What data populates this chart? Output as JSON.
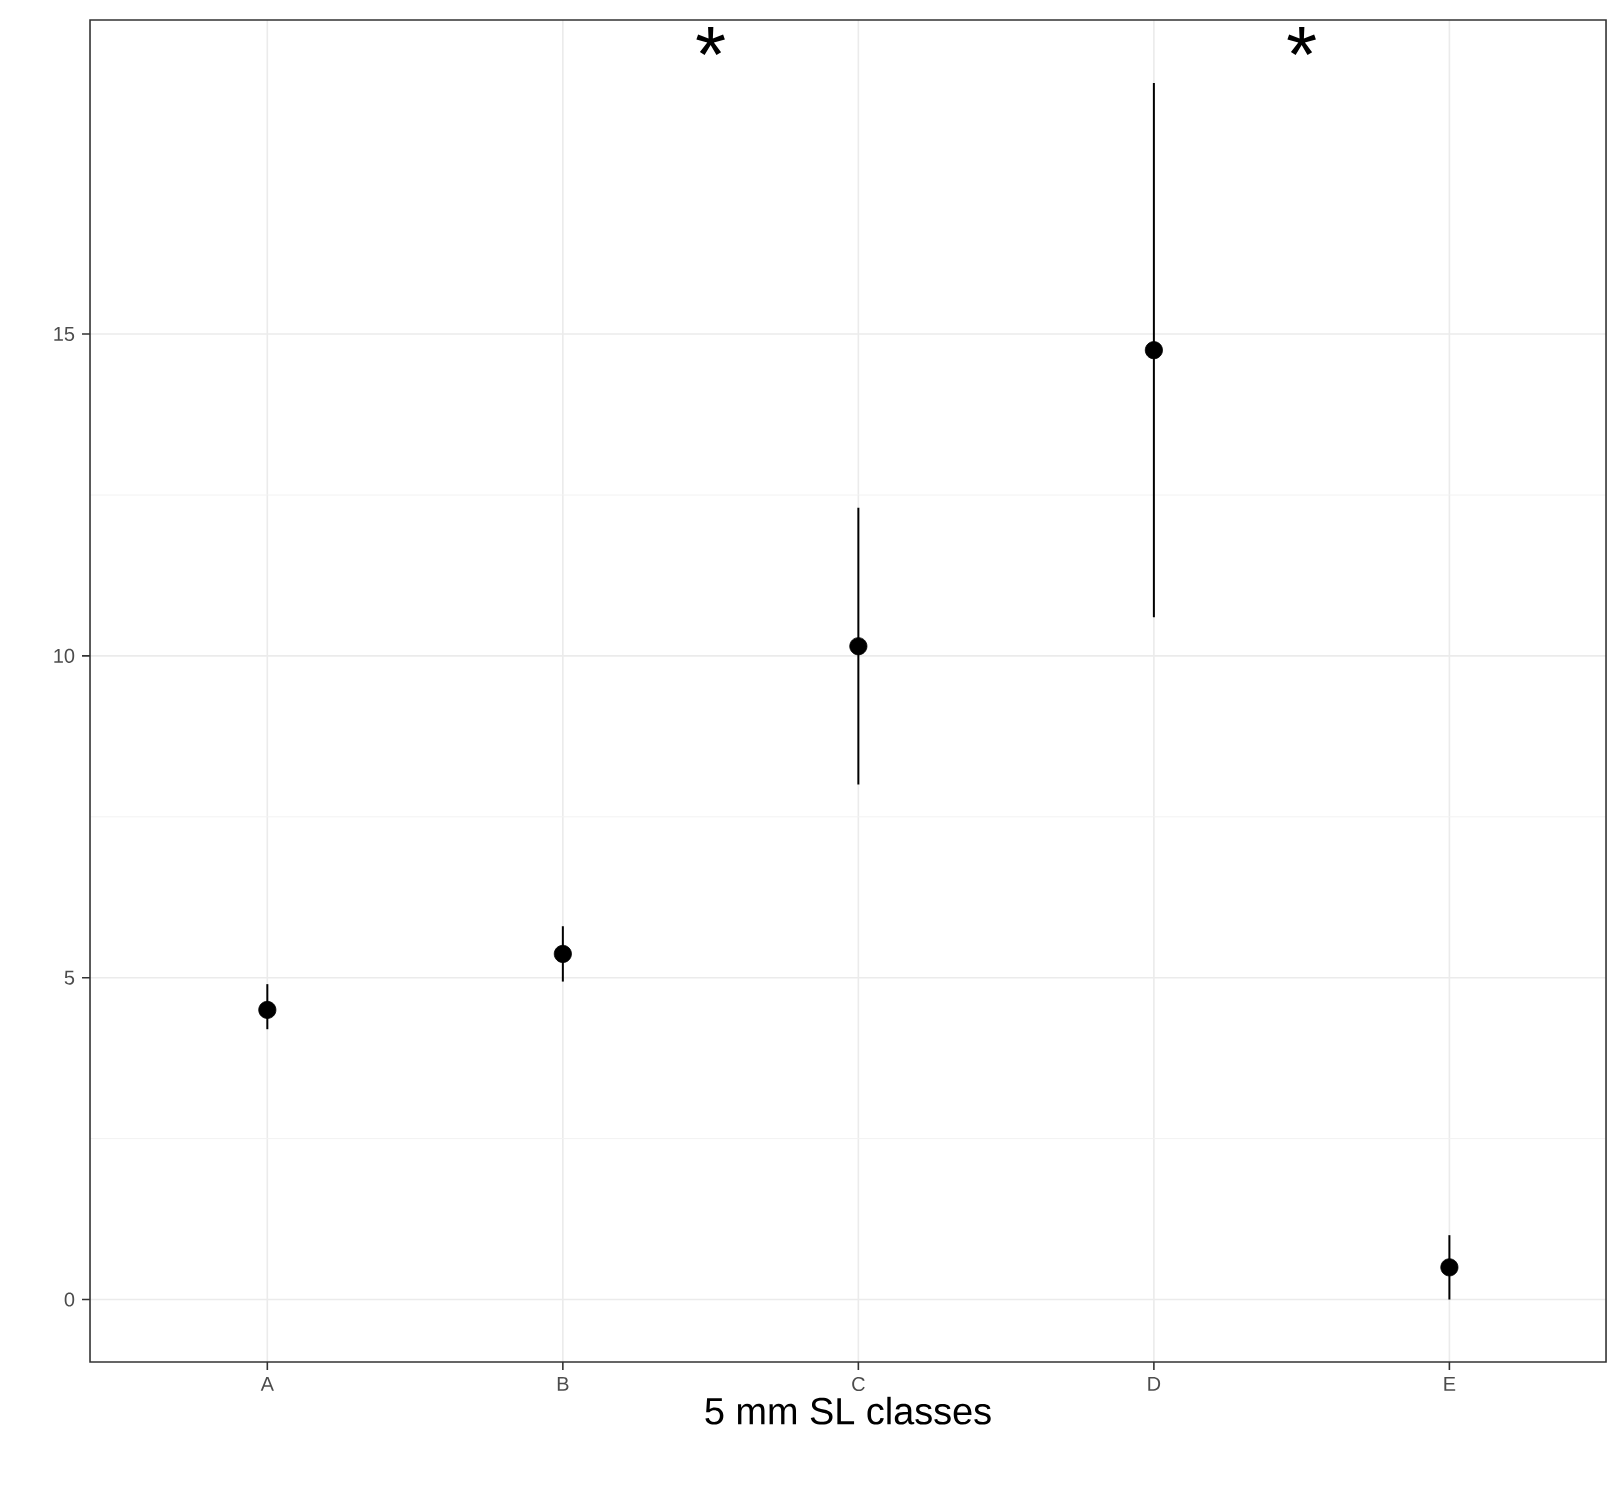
{
  "chart_data": {
    "type": "scatter",
    "categories": [
      "A",
      "B",
      "C",
      "D",
      "E"
    ],
    "series": [
      {
        "color": "#000000",
        "values": [
          4.5,
          5.37,
          10.15,
          14.75,
          0.5
        ],
        "errors": [
          [
            4.2,
            4.9
          ],
          [
            4.94,
            5.8
          ],
          [
            8.0,
            12.3
          ],
          [
            10.6,
            18.9
          ],
          [
            0.0,
            1.0
          ]
        ]
      }
    ],
    "xlabel": "5 mm SL classes",
    "ylim": [
      -0.97,
      19.88
    ],
    "yticks": [
      0,
      5,
      10,
      15
    ],
    "annotations": [
      "*",
      "*"
    ],
    "grid": true
  }
}
